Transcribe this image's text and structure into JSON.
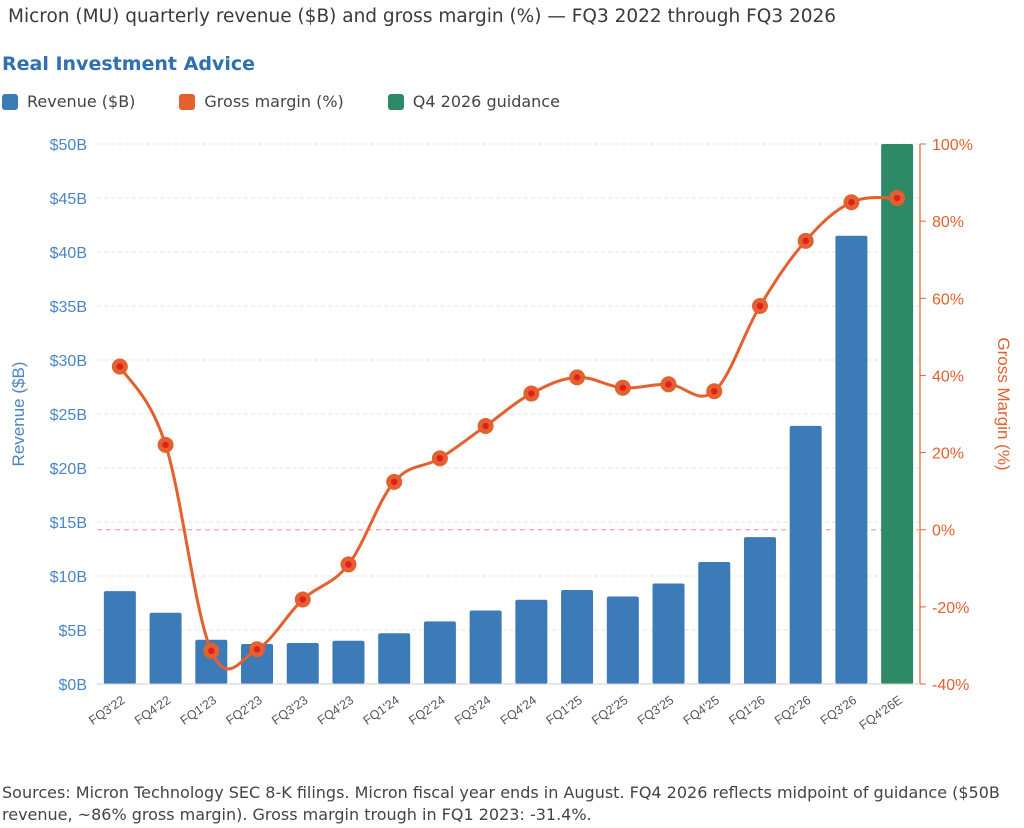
{
  "header": {
    "title": "Micron (MU) quarterly revenue ($B) and gross margin (%) — FQ3 2022 through FQ3 2026",
    "brand": "Real Investment Advice"
  },
  "legend": [
    {
      "label": "Revenue ($B)",
      "color": "#3d7ab8"
    },
    {
      "label": "Gross margin (%)",
      "color": "#e4602e"
    },
    {
      "label": "Q4 2026 guidance",
      "color": "#2e8a66"
    }
  ],
  "colors": {
    "revenue": "#3d7ab8",
    "guidance": "#2e8a66",
    "margin": "#e4602e",
    "margin_point_center": "#e02020",
    "left_axis": "#4a86c5",
    "right_axis": "#e4602e",
    "zero_line": "#f2a6b0"
  },
  "chart_data": {
    "type": "bar",
    "categories": [
      "FQ3'22",
      "FQ4'22",
      "FQ1'23",
      "FQ2'23",
      "FQ3'23",
      "FQ4'23",
      "FQ1'24",
      "FQ2'24",
      "FQ3'24",
      "FQ4'24",
      "FQ1'25",
      "FQ2'25",
      "FQ3'25",
      "FQ4'25",
      "FQ1'26",
      "FQ2'26",
      "FQ3'26",
      "FQ4'26E"
    ],
    "series": [
      {
        "name": "Revenue ($B)",
        "type": "bar",
        "axis": "left",
        "values": [
          8.6,
          6.6,
          4.1,
          3.7,
          3.8,
          4.0,
          4.7,
          5.8,
          6.8,
          7.8,
          8.7,
          8.1,
          9.3,
          11.3,
          13.6,
          23.9,
          41.5,
          50.0
        ],
        "guidance_index": 17
      },
      {
        "name": "Gross margin (%)",
        "type": "line",
        "axis": "right",
        "values": [
          42.3,
          22.0,
          -31.4,
          -31.0,
          -18.1,
          -9.0,
          12.4,
          18.5,
          26.9,
          35.3,
          39.5,
          36.8,
          37.7,
          35.9,
          58.0,
          74.9,
          84.9,
          86.0
        ]
      }
    ],
    "y_left": {
      "label": "Revenue ($B)",
      "min": 0,
      "max": 50,
      "step": 5,
      "ticks": [
        "$0B",
        "$5B",
        "$10B",
        "$15B",
        "$20B",
        "$25B",
        "$30B",
        "$35B",
        "$40B",
        "$45B",
        "$50B"
      ]
    },
    "y_right": {
      "label": "Gross Margin (%)",
      "min": -40,
      "max": 100,
      "step": 20,
      "ticks": [
        "-40%",
        "-20%",
        "0%",
        "20%",
        "40%",
        "60%",
        "80%",
        "100%"
      ]
    },
    "grid": true,
    "zero_reference_line": true,
    "legend_position": "top-left"
  },
  "footer": {
    "note": "Sources: Micron Technology SEC 8-K filings. Micron fiscal year ends in August. FQ4 2026 reflects midpoint of guidance ($50B revenue, ~86% gross margin). Gross margin trough in FQ1 2023: -31.4%."
  }
}
